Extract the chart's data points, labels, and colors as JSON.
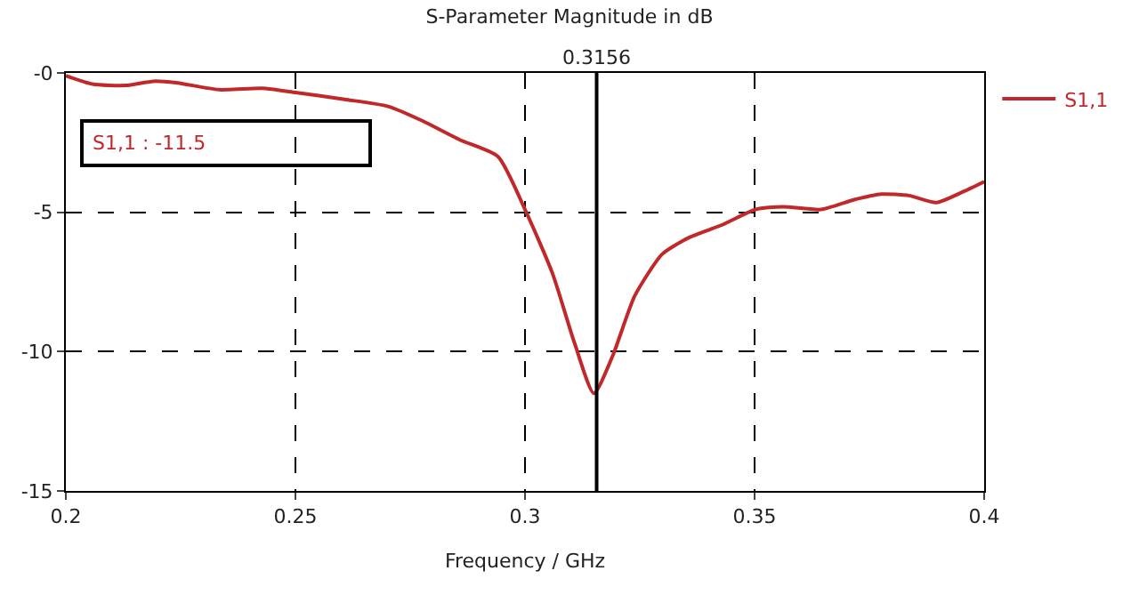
{
  "chart_data": {
    "type": "line",
    "title": "S-Parameter Magnitude in dB",
    "xlabel": "Frequency / GHz",
    "x": [
      0.2,
      0.2058,
      0.213,
      0.219,
      0.224,
      0.2333,
      0.2428,
      0.25,
      0.2607,
      0.2702,
      0.2774,
      0.2858,
      0.2941,
      0.3,
      0.306,
      0.3108,
      0.315,
      0.3191,
      0.3239,
      0.3299,
      0.3358,
      0.343,
      0.3502,
      0.3561,
      0.3645,
      0.3717,
      0.3776,
      0.3836,
      0.3896,
      0.3956,
      0.4
    ],
    "series": [
      {
        "name": "S1,1",
        "color": "#c0282a",
        "values": [
          -0.1,
          -0.4,
          -0.45,
          -0.3,
          -0.35,
          -0.6,
          -0.55,
          -0.7,
          -0.95,
          -1.2,
          -1.7,
          -2.4,
          -3.0,
          -4.9,
          -7.2,
          -9.7,
          -11.5,
          -10.15,
          -8.0,
          -6.5,
          -5.9,
          -5.45,
          -4.9,
          -4.8,
          -4.9,
          -4.55,
          -4.35,
          -4.4,
          -4.65,
          -4.25,
          -3.9
        ]
      }
    ],
    "xlim": [
      0.2,
      0.4
    ],
    "xticks": [
      0.2,
      0.25,
      0.3,
      0.35,
      0.4
    ],
    "ylim": [
      -15,
      0
    ],
    "yticks": [
      -15,
      -10,
      -5,
      {
        "value": 0,
        "label": "-0"
      }
    ],
    "ref_lines": [
      {
        "axis": "x",
        "value": 0.3156,
        "label": "0.3156",
        "color": "#000000",
        "line_style": "solid"
      }
    ],
    "annotations": [
      "S1,1 : -11.5"
    ],
    "grid": true,
    "legend": "top right",
    "marker": "none",
    "line_style": "solid"
  }
}
